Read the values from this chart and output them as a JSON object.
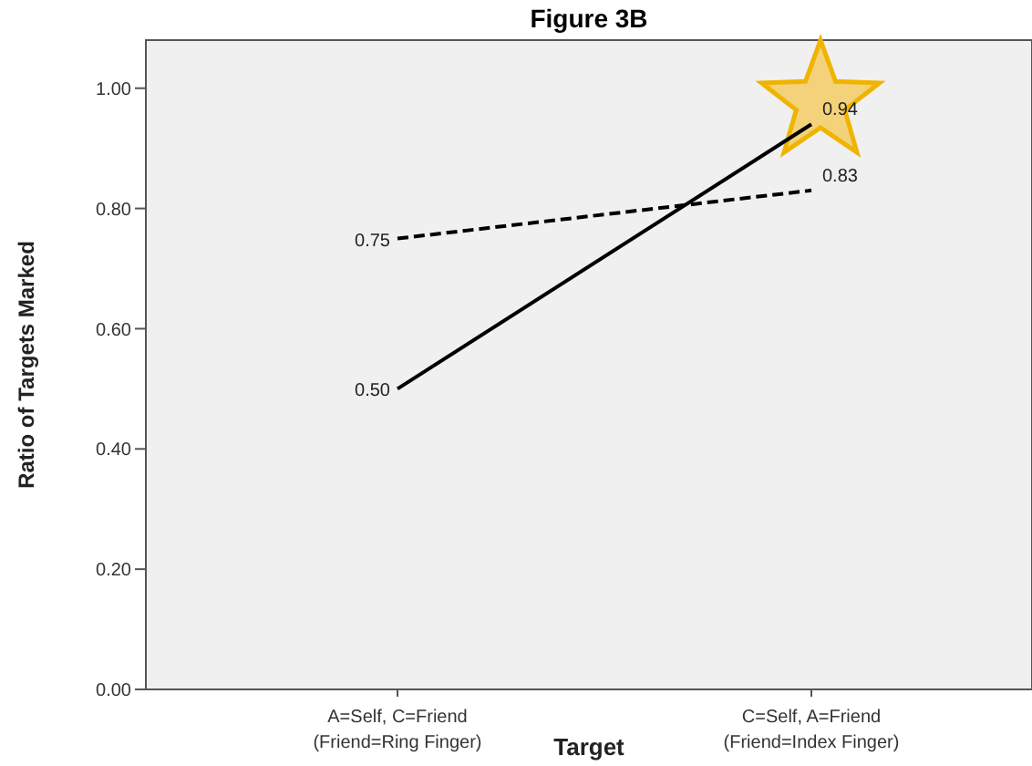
{
  "chart_data": {
    "type": "line",
    "title": "Figure 3B",
    "xlabel": "Target",
    "ylabel": "Ratio of Targets Marked",
    "categories": [
      "A=Self, C=Friend\n(Friend=Ring Finger)",
      "C=Self, A=Friend\n(Friend=Index Finger)"
    ],
    "series": [
      {
        "color": "#000000",
        "line_style": "solid",
        "values": [
          0.5,
          0.94
        ],
        "value_labels": [
          "0.50",
          "0.94"
        ]
      },
      {
        "color": "#000000",
        "line_style": "dashed",
        "values": [
          0.75,
          0.83
        ],
        "value_labels": [
          "0.75",
          "0.83"
        ]
      }
    ],
    "ylim": [
      0,
      1.08
    ],
    "yticks": [
      {
        "value": 0,
        "label": "0.00"
      },
      {
        "value": 0.2,
        "label": "0.20"
      },
      {
        "value": 0.4,
        "label": "0.40"
      },
      {
        "value": 0.6,
        "label": "0.60"
      },
      {
        "value": 0.8,
        "label": "0.80"
      },
      {
        "value": 1,
        "label": "1.00"
      }
    ],
    "marker": "none",
    "legend": false
  }
}
